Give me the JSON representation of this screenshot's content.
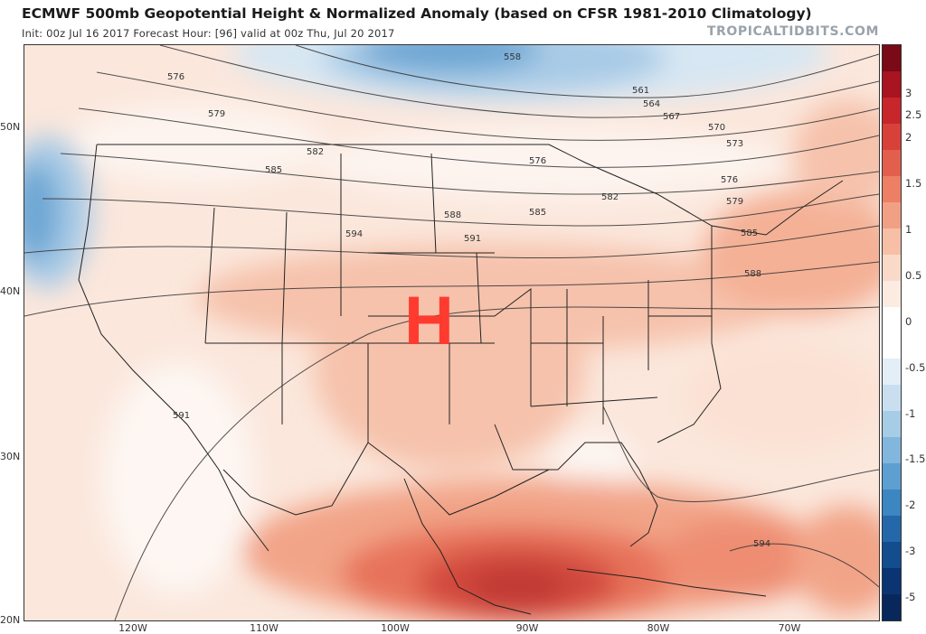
{
  "header": {
    "title": "ECMWF 500mb Geopotential Height & Normalized Anomaly (based on CFSR 1981-2010 Climatology)",
    "subtitle": "Init: 00z Jul 16 2017   Forecast Hour: [96]   valid at 00z Thu, Jul 20 2017",
    "brand": "TROPICALTIDBITS.COM"
  },
  "map": {
    "high_marker": "H",
    "latitude_labels": [
      "50N",
      "40N",
      "30N",
      "20N"
    ],
    "longitude_labels": [
      "120W",
      "110W",
      "100W",
      "90W",
      "80W",
      "70W"
    ],
    "contour_labels": [
      "558",
      "561",
      "564",
      "567",
      "570",
      "573",
      "576",
      "579",
      "582",
      "585",
      "588",
      "591",
      "594"
    ]
  },
  "colorbar": {
    "labels": [
      "3",
      "2.5",
      "2",
      "1.5",
      "1",
      "0.5",
      "0",
      "-0.5",
      "-1",
      "-1.5",
      "-2",
      "-3",
      "-5"
    ],
    "colors": [
      "#7a0a17",
      "#a8141f",
      "#c7262b",
      "#d8413a",
      "#e35f4d",
      "#ec7f64",
      "#f2a084",
      "#f6bfa6",
      "#f9dac9",
      "#fcebe1",
      "#ffffff",
      "#ffffff",
      "#e3eef7",
      "#c9dff0",
      "#a7cce6",
      "#82b6dc",
      "#5d9fd1",
      "#3c86c1",
      "#2468aa",
      "#134d8e",
      "#0b3572",
      "#08285c"
    ]
  }
}
